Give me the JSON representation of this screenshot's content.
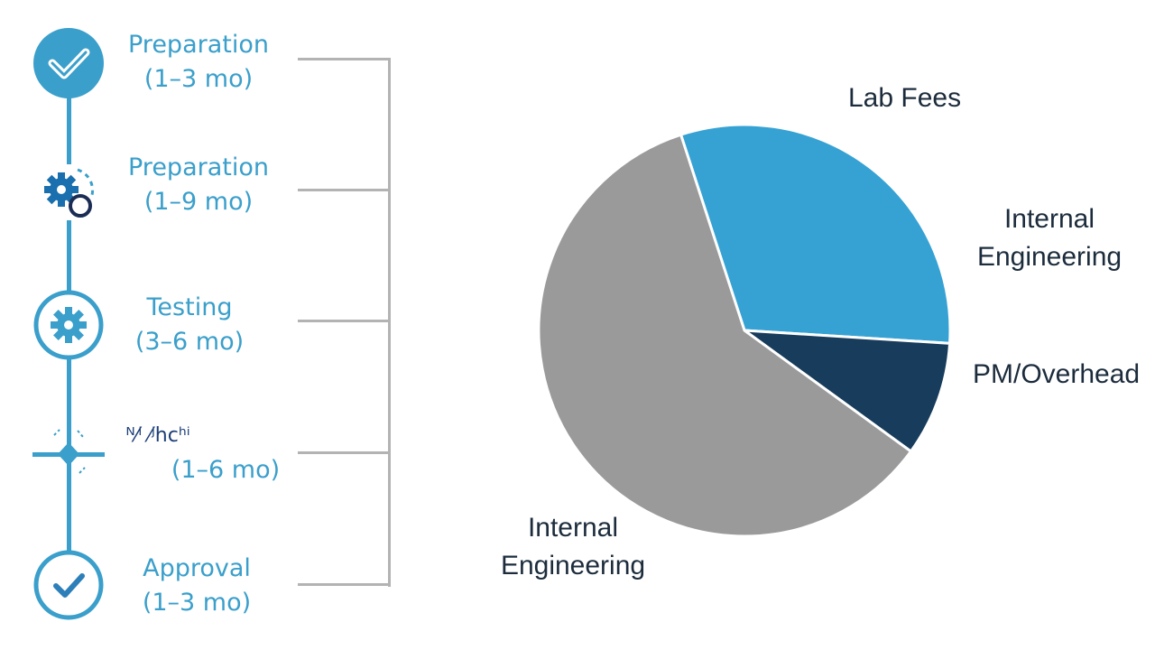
{
  "timeline": {
    "stages": [
      {
        "name": "Preparation",
        "duration": "(1–3 mo)",
        "icon": "checkmark-badge-icon"
      },
      {
        "name": "Preparation",
        "duration": "(1–9 mo)",
        "icon": "gear-cycle-icon"
      },
      {
        "name": "Testing",
        "duration": "(3–6 mo)",
        "icon": "gear-icon"
      },
      {
        "name": "ᴺ⁄ⁱ ⁄ʲhcʰⁱ",
        "duration": "(1–6 mo)",
        "icon": "diamond-marker-icon"
      },
      {
        "name": "Approval",
        "duration": "(1–3 mo)",
        "icon": "checkmark-circle-icon"
      }
    ],
    "colors": {
      "accent": "#3a9fcb",
      "bracket": "#b3b3b3"
    }
  },
  "chart_data": {
    "type": "pie",
    "title": "",
    "slices": [
      {
        "label": "Lab Fees",
        "value": 31,
        "color": "#36a2d4"
      },
      {
        "label": "PM/Overhead",
        "value": 9,
        "color": "#173c5c"
      },
      {
        "label": "Internal Engineering",
        "value": 60,
        "color": "#9a9a9a"
      }
    ],
    "annotations": [
      {
        "text": "Lab Fees"
      },
      {
        "text": "Internal Engineering"
      },
      {
        "text": "PM/Overhead"
      },
      {
        "text": "Internal Engineering"
      }
    ]
  }
}
